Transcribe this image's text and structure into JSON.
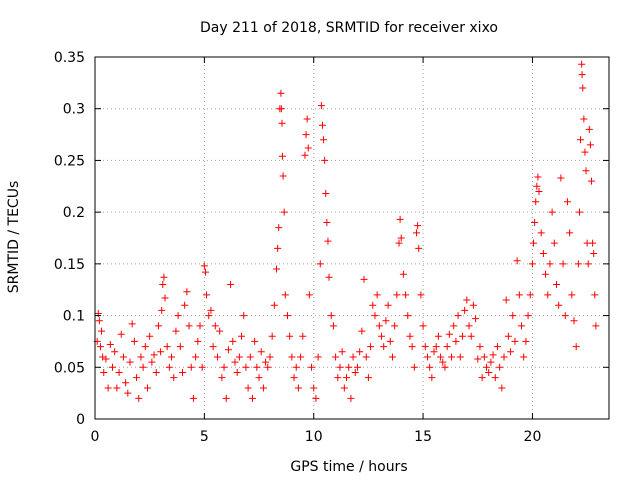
{
  "chart_data": {
    "type": "scatter",
    "title": "Day 211 of 2018, SRMTID for receiver xixo",
    "xlabel": "GPS time / hours",
    "ylabel": "SRMTID / TECUs",
    "xlim": [
      0,
      23.5
    ],
    "ylim": [
      0,
      0.35
    ],
    "xticks": [
      0,
      5,
      10,
      15,
      20
    ],
    "xtick_labels": [
      "0",
      "5",
      "10",
      "15",
      "20"
    ],
    "yticks": [
      0,
      0.05,
      0.1,
      0.15,
      0.2,
      0.25,
      0.3,
      0.35
    ],
    "ytick_labels": [
      "0",
      "0.05",
      "0.1",
      "0.15",
      "0.2",
      "0.25",
      "0.3",
      "0.35"
    ],
    "grid": true,
    "marker": "+",
    "color": "#ff0000",
    "series": [
      {
        "name": "SRMTID",
        "points": [
          [
            0.1,
            0.075
          ],
          [
            0.15,
            0.102
          ],
          [
            0.2,
            0.095
          ],
          [
            0.25,
            0.07
          ],
          [
            0.3,
            0.085
          ],
          [
            0.35,
            0.06
          ],
          [
            0.4,
            0.045
          ],
          [
            0.5,
            0.058
          ],
          [
            0.6,
            0.03
          ],
          [
            0.7,
            0.072
          ],
          [
            0.8,
            0.05
          ],
          [
            0.9,
            0.065
          ],
          [
            1.0,
            0.03
          ],
          [
            1.1,
            0.045
          ],
          [
            1.2,
            0.082
          ],
          [
            1.3,
            0.06
          ],
          [
            1.4,
            0.035
          ],
          [
            1.5,
            0.025
          ],
          [
            1.6,
            0.055
          ],
          [
            1.7,
            0.092
          ],
          [
            1.8,
            0.075
          ],
          [
            1.9,
            0.04
          ],
          [
            2.0,
            0.02
          ],
          [
            2.1,
            0.06
          ],
          [
            2.2,
            0.05
          ],
          [
            2.3,
            0.07
          ],
          [
            2.4,
            0.03
          ],
          [
            2.5,
            0.08
          ],
          [
            2.6,
            0.055
          ],
          [
            2.7,
            0.062
          ],
          [
            2.8,
            0.045
          ],
          [
            2.9,
            0.09
          ],
          [
            3.0,
            0.065
          ],
          [
            3.05,
            0.105
          ],
          [
            3.1,
            0.13
          ],
          [
            3.15,
            0.137
          ],
          [
            3.2,
            0.117
          ],
          [
            3.3,
            0.07
          ],
          [
            3.4,
            0.05
          ],
          [
            3.5,
            0.06
          ],
          [
            3.6,
            0.04
          ],
          [
            3.7,
            0.085
          ],
          [
            3.8,
            0.1
          ],
          [
            3.9,
            0.07
          ],
          [
            4.0,
            0.045
          ],
          [
            4.1,
            0.11
          ],
          [
            4.2,
            0.123
          ],
          [
            4.3,
            0.09
          ],
          [
            4.4,
            0.05
          ],
          [
            4.5,
            0.02
          ],
          [
            4.6,
            0.06
          ],
          [
            4.7,
            0.075
          ],
          [
            4.8,
            0.09
          ],
          [
            4.9,
            0.05
          ],
          [
            5.0,
            0.148
          ],
          [
            5.05,
            0.142
          ],
          [
            5.1,
            0.12
          ],
          [
            5.2,
            0.1
          ],
          [
            5.3,
            0.105
          ],
          [
            5.4,
            0.07
          ],
          [
            5.5,
            0.09
          ],
          [
            5.6,
            0.06
          ],
          [
            5.7,
            0.085
          ],
          [
            5.8,
            0.04
          ],
          [
            5.9,
            0.05
          ],
          [
            6.0,
            0.02
          ],
          [
            6.1,
            0.067
          ],
          [
            6.2,
            0.13
          ],
          [
            6.3,
            0.075
          ],
          [
            6.4,
            0.055
          ],
          [
            6.5,
            0.045
          ],
          [
            6.6,
            0.06
          ],
          [
            6.7,
            0.08
          ],
          [
            6.8,
            0.1
          ],
          [
            6.9,
            0.05
          ],
          [
            7.0,
            0.03
          ],
          [
            7.1,
            0.06
          ],
          [
            7.2,
            0.02
          ],
          [
            7.3,
            0.075
          ],
          [
            7.4,
            0.05
          ],
          [
            7.5,
            0.04
          ],
          [
            7.6,
            0.065
          ],
          [
            7.7,
            0.03
          ],
          [
            7.8,
            0.055
          ],
          [
            7.9,
            0.05
          ],
          [
            8.0,
            0.06
          ],
          [
            8.1,
            0.08
          ],
          [
            8.2,
            0.11
          ],
          [
            8.3,
            0.145
          ],
          [
            8.35,
            0.165
          ],
          [
            8.4,
            0.185
          ],
          [
            8.45,
            0.3
          ],
          [
            8.5,
            0.315
          ],
          [
            8.52,
            0.3
          ],
          [
            8.55,
            0.286
          ],
          [
            8.57,
            0.254
          ],
          [
            8.6,
            0.235
          ],
          [
            8.65,
            0.2
          ],
          [
            8.7,
            0.12
          ],
          [
            8.8,
            0.1
          ],
          [
            8.9,
            0.08
          ],
          [
            9.0,
            0.06
          ],
          [
            9.1,
            0.04
          ],
          [
            9.2,
            0.05
          ],
          [
            9.3,
            0.03
          ],
          [
            9.4,
            0.06
          ],
          [
            9.5,
            0.08
          ],
          [
            9.6,
            0.255
          ],
          [
            9.65,
            0.275
          ],
          [
            9.7,
            0.29
          ],
          [
            9.75,
            0.262
          ],
          [
            9.8,
            0.12
          ],
          [
            9.9,
            0.05
          ],
          [
            10.0,
            0.03
          ],
          [
            10.1,
            0.02
          ],
          [
            10.2,
            0.06
          ],
          [
            10.3,
            0.15
          ],
          [
            10.35,
            0.303
          ],
          [
            10.4,
            0.284
          ],
          [
            10.45,
            0.27
          ],
          [
            10.5,
            0.25
          ],
          [
            10.55,
            0.218
          ],
          [
            10.6,
            0.19
          ],
          [
            10.65,
            0.172
          ],
          [
            10.7,
            0.137
          ],
          [
            10.8,
            0.1
          ],
          [
            10.9,
            0.09
          ],
          [
            11.0,
            0.06
          ],
          [
            11.1,
            0.04
          ],
          [
            11.2,
            0.05
          ],
          [
            11.3,
            0.065
          ],
          [
            11.4,
            0.03
          ],
          [
            11.5,
            0.04
          ],
          [
            11.6,
            0.05
          ],
          [
            11.7,
            0.02
          ],
          [
            11.8,
            0.06
          ],
          [
            11.9,
            0.045
          ],
          [
            12.0,
            0.05
          ],
          [
            12.1,
            0.065
          ],
          [
            12.2,
            0.085
          ],
          [
            12.3,
            0.135
          ],
          [
            12.4,
            0.06
          ],
          [
            12.5,
            0.04
          ],
          [
            12.6,
            0.07
          ],
          [
            12.7,
            0.11
          ],
          [
            12.8,
            0.1
          ],
          [
            12.9,
            0.12
          ],
          [
            13.0,
            0.09
          ],
          [
            13.1,
            0.08
          ],
          [
            13.2,
            0.07
          ],
          [
            13.3,
            0.095
          ],
          [
            13.4,
            0.11
          ],
          [
            13.5,
            0.075
          ],
          [
            13.6,
            0.06
          ],
          [
            13.7,
            0.09
          ],
          [
            13.8,
            0.12
          ],
          [
            13.9,
            0.17
          ],
          [
            13.95,
            0.193
          ],
          [
            14.0,
            0.175
          ],
          [
            14.1,
            0.14
          ],
          [
            14.2,
            0.12
          ],
          [
            14.3,
            0.1
          ],
          [
            14.4,
            0.08
          ],
          [
            14.5,
            0.07
          ],
          [
            14.6,
            0.05
          ],
          [
            14.7,
            0.18
          ],
          [
            14.75,
            0.187
          ],
          [
            14.8,
            0.165
          ],
          [
            14.9,
            0.12
          ],
          [
            15.0,
            0.09
          ],
          [
            15.1,
            0.07
          ],
          [
            15.2,
            0.06
          ],
          [
            15.3,
            0.05
          ],
          [
            15.4,
            0.04
          ],
          [
            15.5,
            0.065
          ],
          [
            15.6,
            0.07
          ],
          [
            15.7,
            0.08
          ],
          [
            15.8,
            0.06
          ],
          [
            15.9,
            0.055
          ],
          [
            16.0,
            0.05
          ],
          [
            16.1,
            0.07
          ],
          [
            16.2,
            0.082
          ],
          [
            16.3,
            0.06
          ],
          [
            16.4,
            0.09
          ],
          [
            16.5,
            0.075
          ],
          [
            16.6,
            0.1
          ],
          [
            16.7,
            0.06
          ],
          [
            16.8,
            0.08
          ],
          [
            16.9,
            0.105
          ],
          [
            17.0,
            0.115
          ],
          [
            17.1,
            0.09
          ],
          [
            17.2,
            0.08
          ],
          [
            17.3,
            0.11
          ],
          [
            17.4,
            0.097
          ],
          [
            17.5,
            0.058
          ],
          [
            17.6,
            0.07
          ],
          [
            17.7,
            0.04
          ],
          [
            17.8,
            0.06
          ],
          [
            17.9,
            0.05
          ],
          [
            18.0,
            0.045
          ],
          [
            18.1,
            0.055
          ],
          [
            18.2,
            0.062
          ],
          [
            18.3,
            0.04
          ],
          [
            18.4,
            0.07
          ],
          [
            18.5,
            0.05
          ],
          [
            18.6,
            0.03
          ],
          [
            18.7,
            0.06
          ],
          [
            18.8,
            0.115
          ],
          [
            18.9,
            0.08
          ],
          [
            19.0,
            0.065
          ],
          [
            19.1,
            0.1
          ],
          [
            19.2,
            0.075
          ],
          [
            19.3,
            0.153
          ],
          [
            19.4,
            0.12
          ],
          [
            19.5,
            0.09
          ],
          [
            19.6,
            0.06
          ],
          [
            19.7,
            0.075
          ],
          [
            19.8,
            0.1
          ],
          [
            19.9,
            0.12
          ],
          [
            20.0,
            0.15
          ],
          [
            20.05,
            0.17
          ],
          [
            20.1,
            0.19
          ],
          [
            20.15,
            0.21
          ],
          [
            20.2,
            0.225
          ],
          [
            20.25,
            0.234
          ],
          [
            20.3,
            0.22
          ],
          [
            20.4,
            0.18
          ],
          [
            20.5,
            0.16
          ],
          [
            20.6,
            0.14
          ],
          [
            20.7,
            0.12
          ],
          [
            20.8,
            0.15
          ],
          [
            20.9,
            0.2
          ],
          [
            21.0,
            0.17
          ],
          [
            21.1,
            0.13
          ],
          [
            21.2,
            0.11
          ],
          [
            21.3,
            0.233
          ],
          [
            21.4,
            0.15
          ],
          [
            21.5,
            0.1
          ],
          [
            21.6,
            0.21
          ],
          [
            21.7,
            0.18
          ],
          [
            21.8,
            0.12
          ],
          [
            21.9,
            0.095
          ],
          [
            22.0,
            0.07
          ],
          [
            22.1,
            0.15
          ],
          [
            22.15,
            0.2
          ],
          [
            22.2,
            0.27
          ],
          [
            22.25,
            0.343
          ],
          [
            22.27,
            0.333
          ],
          [
            22.3,
            0.32
          ],
          [
            22.35,
            0.29
          ],
          [
            22.4,
            0.258
          ],
          [
            22.45,
            0.24
          ],
          [
            22.5,
            0.17
          ],
          [
            22.55,
            0.15
          ],
          [
            22.6,
            0.28
          ],
          [
            22.65,
            0.265
          ],
          [
            22.7,
            0.23
          ],
          [
            22.75,
            0.17
          ],
          [
            22.8,
            0.16
          ],
          [
            22.85,
            0.12
          ],
          [
            22.9,
            0.09
          ]
        ]
      }
    ]
  }
}
